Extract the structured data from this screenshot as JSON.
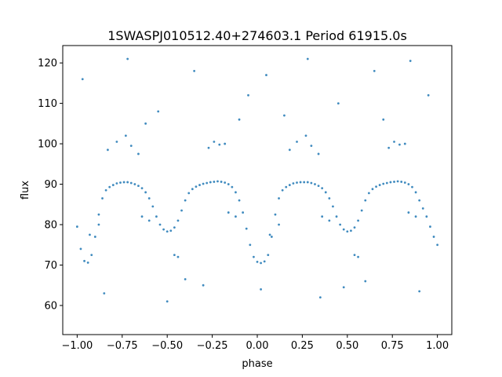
{
  "chart_data": {
    "type": "scatter",
    "title": "1SWASPJ010512.40+274603.1 Period 61915.0s",
    "xlabel": "phase",
    "ylabel": "flux",
    "xlim": [
      -1.08,
      1.08
    ],
    "ylim": [
      52.8,
      124.3
    ],
    "xticks": [
      -1.0,
      -0.75,
      -0.5,
      -0.25,
      0.0,
      0.25,
      0.5,
      0.75,
      1.0
    ],
    "xtick_labels": [
      "−1.00",
      "−0.75",
      "−0.50",
      "−0.25",
      "0.00",
      "0.25",
      "0.50",
      "0.75",
      "1.00"
    ],
    "yticks": [
      60,
      70,
      80,
      90,
      100,
      110,
      120
    ],
    "ytick_labels": [
      "60",
      "70",
      "80",
      "90",
      "100",
      "110",
      "120"
    ],
    "grid": false,
    "legend": "none",
    "marker_color": "#1f77b4",
    "series": [
      {
        "description_points": "phase-folded light curve, repeated over two cycles",
        "points": [
          [
            -1.0,
            79.5
          ],
          [
            -0.98,
            74.0
          ],
          [
            -0.96,
            71.0
          ],
          [
            -0.94,
            70.6
          ],
          [
            -0.92,
            72.5
          ],
          [
            -0.9,
            77.0
          ],
          [
            -0.88,
            82.5
          ],
          [
            -0.86,
            86.5
          ],
          [
            -0.84,
            88.5
          ],
          [
            -0.82,
            89.3
          ],
          [
            -0.8,
            89.8
          ],
          [
            -0.78,
            90.2
          ],
          [
            -0.76,
            90.4
          ],
          [
            -0.74,
            90.5
          ],
          [
            -0.72,
            90.5
          ],
          [
            -0.7,
            90.3
          ],
          [
            -0.68,
            90.0
          ],
          [
            -0.66,
            89.6
          ],
          [
            -0.64,
            89.0
          ],
          [
            -0.62,
            88.0
          ],
          [
            -0.6,
            86.5
          ],
          [
            -0.58,
            84.5
          ],
          [
            -0.56,
            82.0
          ],
          [
            -0.54,
            80.0
          ],
          [
            -0.52,
            78.8
          ],
          [
            -0.5,
            78.3
          ],
          [
            -0.48,
            78.5
          ],
          [
            -0.46,
            79.3
          ],
          [
            -0.44,
            81.0
          ],
          [
            -0.42,
            83.5
          ],
          [
            -0.4,
            86.0
          ],
          [
            -0.38,
            87.8
          ],
          [
            -0.36,
            88.8
          ],
          [
            -0.34,
            89.4
          ],
          [
            -0.32,
            89.8
          ],
          [
            -0.3,
            90.1
          ],
          [
            -0.28,
            90.3
          ],
          [
            -0.26,
            90.5
          ],
          [
            -0.24,
            90.6
          ],
          [
            -0.22,
            90.7
          ],
          [
            -0.2,
            90.6
          ],
          [
            -0.18,
            90.4
          ],
          [
            -0.16,
            90.0
          ],
          [
            -0.14,
            89.3
          ],
          [
            -0.12,
            88.0
          ],
          [
            -0.1,
            86.0
          ],
          [
            -0.08,
            83.0
          ],
          [
            -0.06,
            79.0
          ],
          [
            -0.04,
            75.0
          ],
          [
            -0.02,
            72.0
          ],
          [
            0.0,
            70.8
          ],
          [
            0.02,
            70.5
          ],
          [
            0.04,
            70.9
          ],
          [
            0.06,
            72.5
          ],
          [
            0.08,
            77.0
          ],
          [
            0.1,
            82.5
          ],
          [
            0.12,
            86.5
          ],
          [
            0.14,
            88.5
          ],
          [
            0.16,
            89.3
          ],
          [
            0.18,
            89.8
          ],
          [
            0.2,
            90.2
          ],
          [
            0.22,
            90.4
          ],
          [
            0.24,
            90.5
          ],
          [
            0.26,
            90.5
          ],
          [
            0.28,
            90.5
          ],
          [
            0.3,
            90.3
          ],
          [
            0.32,
            90.0
          ],
          [
            0.34,
            89.6
          ],
          [
            0.36,
            89.0
          ],
          [
            0.38,
            88.0
          ],
          [
            0.4,
            86.5
          ],
          [
            0.42,
            84.5
          ],
          [
            0.44,
            82.0
          ],
          [
            0.46,
            80.0
          ],
          [
            0.48,
            78.8
          ],
          [
            0.5,
            78.3
          ],
          [
            0.52,
            78.5
          ],
          [
            0.54,
            79.3
          ],
          [
            0.56,
            81.0
          ],
          [
            0.58,
            83.5
          ],
          [
            0.6,
            86.0
          ],
          [
            0.62,
            87.8
          ],
          [
            0.64,
            88.8
          ],
          [
            0.66,
            89.4
          ],
          [
            0.68,
            89.8
          ],
          [
            0.7,
            90.1
          ],
          [
            0.72,
            90.3
          ],
          [
            0.74,
            90.5
          ],
          [
            0.76,
            90.6
          ],
          [
            0.78,
            90.7
          ],
          [
            0.8,
            90.6
          ],
          [
            0.82,
            90.4
          ],
          [
            0.84,
            90.0
          ],
          [
            0.86,
            89.3
          ],
          [
            0.88,
            88.0
          ],
          [
            0.9,
            86.0
          ],
          [
            0.92,
            84.0
          ],
          [
            0.94,
            82.0
          ],
          [
            0.96,
            79.5
          ],
          [
            0.98,
            77.0
          ],
          [
            1.0,
            75.0
          ],
          [
            -0.83,
            98.5
          ],
          [
            -0.78,
            100.5
          ],
          [
            -0.73,
            102.0
          ],
          [
            -0.7,
            99.5
          ],
          [
            -0.66,
            97.5
          ],
          [
            -0.27,
            99.0
          ],
          [
            -0.24,
            100.5
          ],
          [
            -0.21,
            99.8
          ],
          [
            -0.18,
            100.0
          ],
          [
            0.18,
            98.5
          ],
          [
            0.22,
            100.5
          ],
          [
            0.27,
            102.0
          ],
          [
            0.3,
            99.5
          ],
          [
            0.34,
            97.5
          ],
          [
            0.73,
            99.0
          ],
          [
            0.76,
            100.5
          ],
          [
            0.79,
            99.8
          ],
          [
            0.82,
            100.0
          ],
          [
            -0.46,
            72.5
          ],
          [
            -0.44,
            72.0
          ],
          [
            0.54,
            72.5
          ],
          [
            0.56,
            72.0
          ],
          [
            -0.93,
            77.5
          ],
          [
            -0.88,
            80.0
          ],
          [
            0.07,
            77.5
          ],
          [
            0.12,
            80.0
          ],
          [
            -0.64,
            82.0
          ],
          [
            -0.6,
            81.0
          ],
          [
            0.36,
            82.0
          ],
          [
            0.4,
            81.0
          ],
          [
            -0.16,
            83.0
          ],
          [
            -0.12,
            82.0
          ],
          [
            0.84,
            83.0
          ],
          [
            0.88,
            82.0
          ],
          [
            -0.97,
            116.0
          ],
          [
            -0.72,
            121.0
          ],
          [
            -0.55,
            108.0
          ],
          [
            -0.35,
            118.0
          ],
          [
            -0.05,
            112.0
          ],
          [
            0.05,
            117.0
          ],
          [
            0.28,
            121.0
          ],
          [
            0.45,
            110.0
          ],
          [
            0.65,
            118.0
          ],
          [
            0.85,
            120.5
          ],
          [
            0.95,
            112.0
          ],
          [
            -0.85,
            63.0
          ],
          [
            -0.5,
            61.0
          ],
          [
            -0.3,
            65.0
          ],
          [
            0.02,
            64.0
          ],
          [
            0.35,
            62.0
          ],
          [
            0.6,
            66.0
          ],
          [
            0.9,
            63.5
          ],
          [
            -0.62,
            105.0
          ],
          [
            0.15,
            107.0
          ],
          [
            0.7,
            106.0
          ],
          [
            -0.1,
            106.0
          ],
          [
            -0.4,
            66.5
          ],
          [
            0.48,
            64.5
          ]
        ]
      }
    ]
  }
}
